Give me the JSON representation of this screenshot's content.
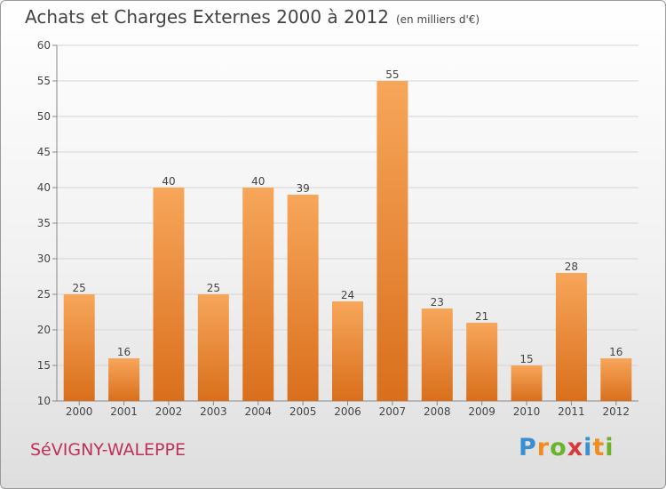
{
  "header": {
    "title": "Achats et Charges Externes 2000 à 2012",
    "unit": "(en milliers d'€)"
  },
  "footer": {
    "commune": "SéVIGNY-WALEPPE",
    "logo_letters": [
      "P",
      "r",
      "o",
      "x",
      "i",
      "t",
      "i"
    ],
    "logo_colors": [
      "#3a8fd0",
      "#f28c1c",
      "#6ab42d",
      "#d63a3a",
      "#3a8fd0",
      "#f28c1c",
      "#6ab42d"
    ]
  },
  "chart_data": {
    "type": "bar",
    "title": "Achats et Charges Externes 2000 à 2012",
    "subtitle": "(en milliers d'€)",
    "categories": [
      "2000",
      "2001",
      "2002",
      "2003",
      "2004",
      "2005",
      "2006",
      "2007",
      "2008",
      "2009",
      "2010",
      "2011",
      "2012"
    ],
    "values": [
      25,
      16,
      40,
      25,
      40,
      39,
      24,
      55,
      23,
      21,
      15,
      28,
      16
    ],
    "ylim": [
      10,
      60
    ],
    "yticks": [
      10,
      15,
      20,
      25,
      30,
      35,
      40,
      45,
      50,
      55,
      60
    ],
    "grid": true,
    "bar_color_top": "#f7a65a",
    "bar_color_bottom": "#d96f1c"
  }
}
